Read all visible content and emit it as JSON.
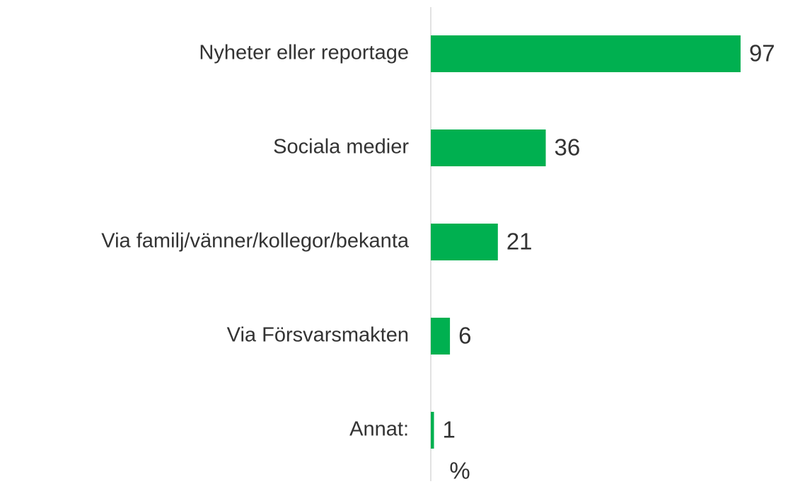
{
  "chart_data": {
    "type": "bar",
    "orientation": "horizontal",
    "categories": [
      "Nyheter eller reportage",
      "Sociala medier",
      "Via familj/vänner/kollegor/bekanta",
      "Via Försvarsmakten",
      "Annat:"
    ],
    "values": [
      97,
      36,
      21,
      6,
      1
    ],
    "color": "#00b050",
    "xlim": [
      0,
      100
    ],
    "x_label": "%"
  }
}
